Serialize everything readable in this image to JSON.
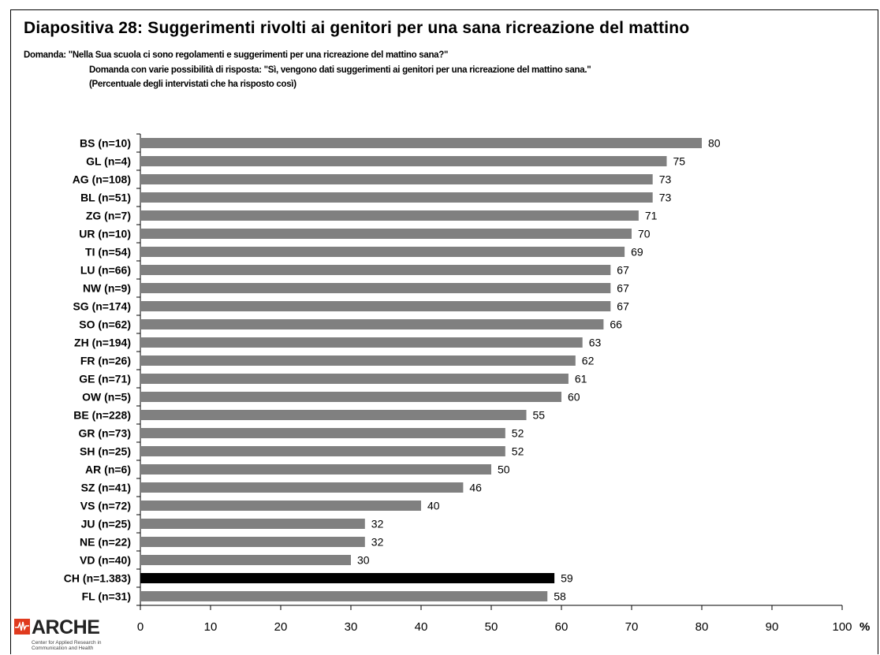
{
  "slide": {
    "title": "Diapositiva 28: Suggerimenti rivolti ai genitori per una sana ricreazione del mattino",
    "question": "Domanda: \"Nella Sua scuola ci sono regolamenti e suggerimenti per una ricreazione del mattino sana?\"",
    "answer_note": "Domanda con varie possibilità di risposta: \"Sì, vengono dati suggerimenti ai genitori per una ricreazione del mattino sana.\"",
    "unit_note": "(Percentuale degli intervistati che ha risposto così)"
  },
  "logo": {
    "name": "ARCHE",
    "subtitle_line1": "Center for Applied Research in",
    "subtitle_line2": "Communication and Health",
    "icon": "pulse-icon",
    "color": "#e03a1e"
  },
  "chart_data": {
    "type": "bar",
    "orientation": "horizontal",
    "categories": [
      "BS (n=10)",
      "GL (n=4)",
      "AG (n=108)",
      "BL (n=51)",
      "ZG (n=7)",
      "UR (n=10)",
      "TI (n=54)",
      "LU (n=66)",
      "NW (n=9)",
      "SG (n=174)",
      "SO (n=62)",
      "ZH (n=194)",
      "FR (n=26)",
      "GE (n=71)",
      "OW (n=5)",
      "BE (n=228)",
      "GR (n=73)",
      "SH (n=25)",
      "AR (n=6)",
      "SZ (n=41)",
      "VS (n=72)",
      "JU (n=25)",
      "NE (n=22)",
      "VD (n=40)",
      "CH (n=1.383)",
      "FL (n=31)"
    ],
    "values": [
      80,
      75,
      73,
      73,
      71,
      70,
      69,
      67,
      67,
      67,
      66,
      63,
      62,
      61,
      60,
      55,
      52,
      52,
      50,
      46,
      40,
      32,
      32,
      30,
      59,
      58
    ],
    "highlight_category": "CH (n=1.383)",
    "xlim": [
      0,
      100
    ],
    "xticks": [
      0,
      10,
      20,
      30,
      40,
      50,
      60,
      70,
      80,
      90,
      100
    ],
    "xunit": "%",
    "colors": {
      "bar": "#808080",
      "highlight": "#000000"
    },
    "grid": false,
    "legend": "none"
  }
}
